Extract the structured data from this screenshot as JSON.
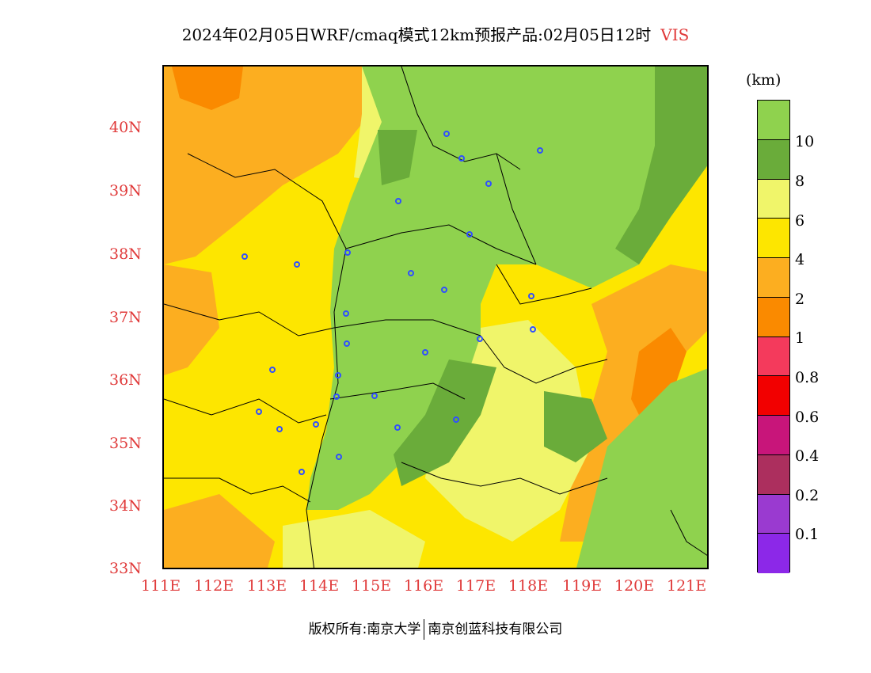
{
  "title": {
    "main": "2024年02月05日WRF/cmaq模式12km预报产品:02月05日12时",
    "variable": "VIS"
  },
  "axes": {
    "lat_labels": [
      "40N",
      "39N",
      "38N",
      "37N",
      "36N",
      "35N",
      "34N",
      "33N"
    ],
    "lon_labels": [
      "111E",
      "112E",
      "113E",
      "114E",
      "115E",
      "116E",
      "117E",
      "118E",
      "119E",
      "120E",
      "121E"
    ]
  },
  "colorbar": {
    "unit": "(km)",
    "labels": [
      "10",
      "8",
      "6",
      "4",
      "2",
      "1",
      "0.8",
      "0.6",
      "0.4",
      "0.2",
      "0.1"
    ],
    "colors": [
      "#8fd24e",
      "#6aac3a",
      "#f0f56a",
      "#fde600",
      "#fcae20",
      "#fa8a00",
      "#f43a5c",
      "#f20000",
      "#c8157a",
      "#ac2f5e",
      "#9a3ad0",
      "#8c28e8"
    ]
  },
  "map": {
    "background": "#fde600",
    "legend_colors": {
      "vis_gt10": "#8fd24e",
      "vis_8_10": "#6aac3a",
      "vis_6_8": "#f0f56a",
      "vis_4_6": "#fde600",
      "vis_2_4": "#fcae20",
      "vis_1_2": "#fa8a00"
    },
    "station_color": "#2f4fff"
  },
  "footer": {
    "copyright": "版权所有:南京大学",
    "company": "南京创蓝科技有限公司"
  }
}
